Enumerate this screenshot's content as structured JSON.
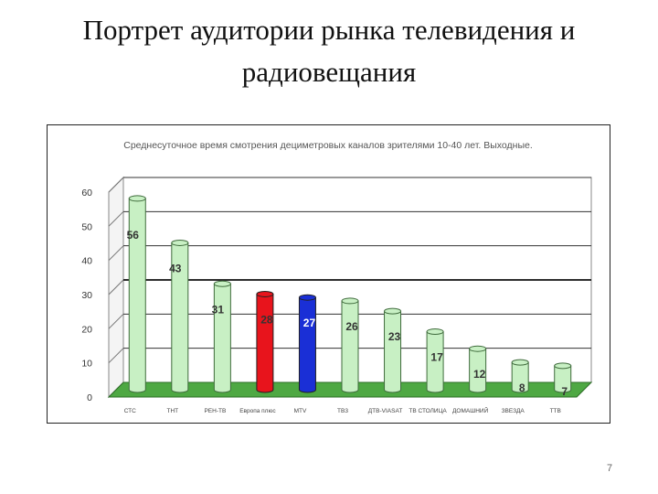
{
  "slide": {
    "title_line1": "Портрет аудитории рынка телевидения и",
    "title_line2": "радиовещания",
    "page_number": "7"
  },
  "chart_data": {
    "type": "bar",
    "title": "Среднесуточное время смотрения дециметровых каналов зрителями 10-40 лет. Выходные.",
    "xlabel": "",
    "ylabel": "",
    "ylim": [
      0,
      60
    ],
    "yticks": [
      0,
      10,
      20,
      30,
      40,
      50,
      60
    ],
    "grid": true,
    "legend": "none",
    "categories": [
      "СТС",
      "ТНТ",
      "РЕН-ТВ",
      "Европа плюс",
      "MTV",
      "ТВ3",
      "ДТВ-VIASAT",
      "ТВ СТОЛИЦА",
      "ДОМАШНИЙ",
      "ЗВЕЗДА",
      "ТТВ"
    ],
    "values": [
      56,
      43,
      31,
      28,
      27,
      26,
      23,
      17,
      12,
      8,
      7
    ],
    "bar_colors": [
      "#c8f0c4",
      "#c8f0c4",
      "#c8f0c4",
      "#e8141c",
      "#1a2fd6",
      "#c8f0c4",
      "#c8f0c4",
      "#c8f0c4",
      "#c8f0c4",
      "#c8f0c4",
      "#c8f0c4"
    ],
    "floor_color": "#4ea843",
    "highlight_gridline_value": 30
  }
}
